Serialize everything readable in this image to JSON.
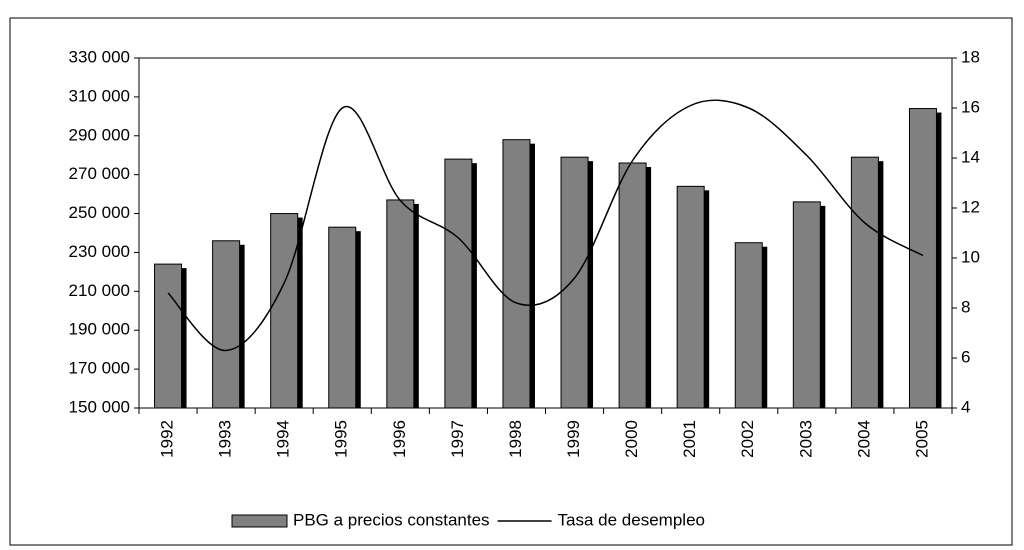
{
  "chart_data": {
    "type": "bar",
    "categories": [
      "1992",
      "1993",
      "1994",
      "1995",
      "1996",
      "1997",
      "1998",
      "1999",
      "2000",
      "2001",
      "2002",
      "2003",
      "2004",
      "2005"
    ],
    "series": [
      {
        "name": "PBG a precios constantes",
        "type": "bar",
        "color": "#808080",
        "values": [
          224000,
          236000,
          250000,
          243000,
          257000,
          278000,
          288000,
          279000,
          276000,
          264000,
          235000,
          256000,
          279000,
          304000
        ]
      },
      {
        "name": "Tasa de desempleo",
        "type": "line",
        "axis": "y2",
        "color": "#000000",
        "values": [
          8.6,
          6.3,
          9.0,
          16.0,
          12.3,
          10.8,
          8.2,
          9.2,
          13.9,
          16.1,
          16.0,
          14.1,
          11.4,
          10.1
        ]
      }
    ],
    "ylim": [
      150000,
      330000
    ],
    "yticks": [
      {
        "value": 150000,
        "label": "150 000"
      },
      {
        "value": 170000,
        "label": "170 000"
      },
      {
        "value": 190000,
        "label": "190 000"
      },
      {
        "value": 210000,
        "label": "210 000"
      },
      {
        "value": 230000,
        "label": "230 000"
      },
      {
        "value": 250000,
        "label": "250 000"
      },
      {
        "value": 270000,
        "label": "270 000"
      },
      {
        "value": 290000,
        "label": "290 000"
      },
      {
        "value": 310000,
        "label": "310 000"
      },
      {
        "value": 330000,
        "label": "330 000"
      }
    ],
    "y2lim": [
      4,
      18
    ],
    "y2ticks": [
      4,
      6,
      8,
      10,
      12,
      14,
      16,
      18
    ],
    "grid": false,
    "legend": "bottom"
  }
}
